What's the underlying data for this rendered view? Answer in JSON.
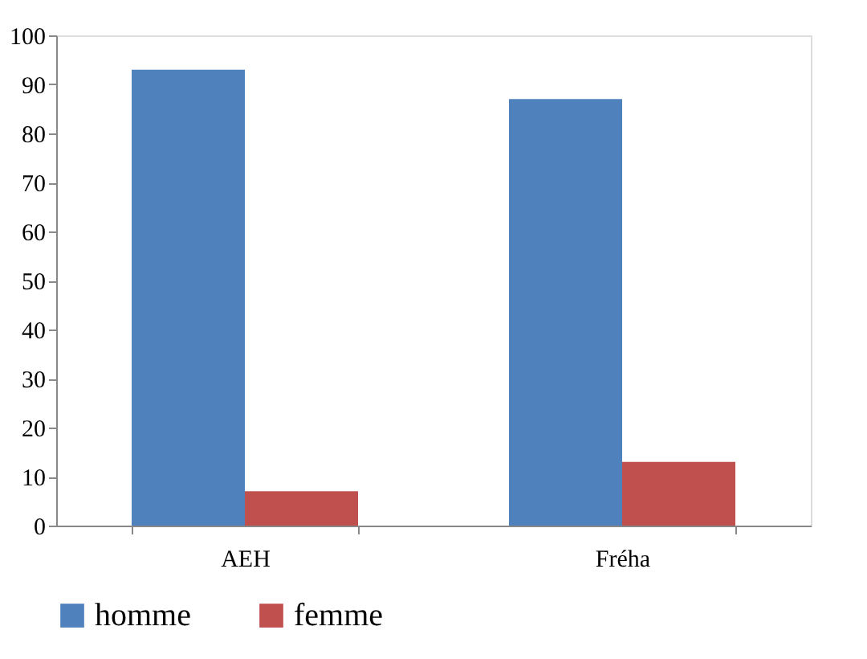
{
  "chart_data": {
    "type": "bar",
    "categories": [
      "AEH",
      "Fréha"
    ],
    "series": [
      {
        "name": "homme",
        "color": "#4f81bd",
        "values": [
          93,
          87
        ]
      },
      {
        "name": "femme",
        "color": "#c0504d",
        "values": [
          7,
          13
        ]
      }
    ],
    "ylim": [
      0,
      100
    ],
    "yticks": [
      0,
      10,
      20,
      30,
      40,
      50,
      60,
      70,
      80,
      90,
      100
    ],
    "grid": false,
    "legend": "bottom"
  }
}
